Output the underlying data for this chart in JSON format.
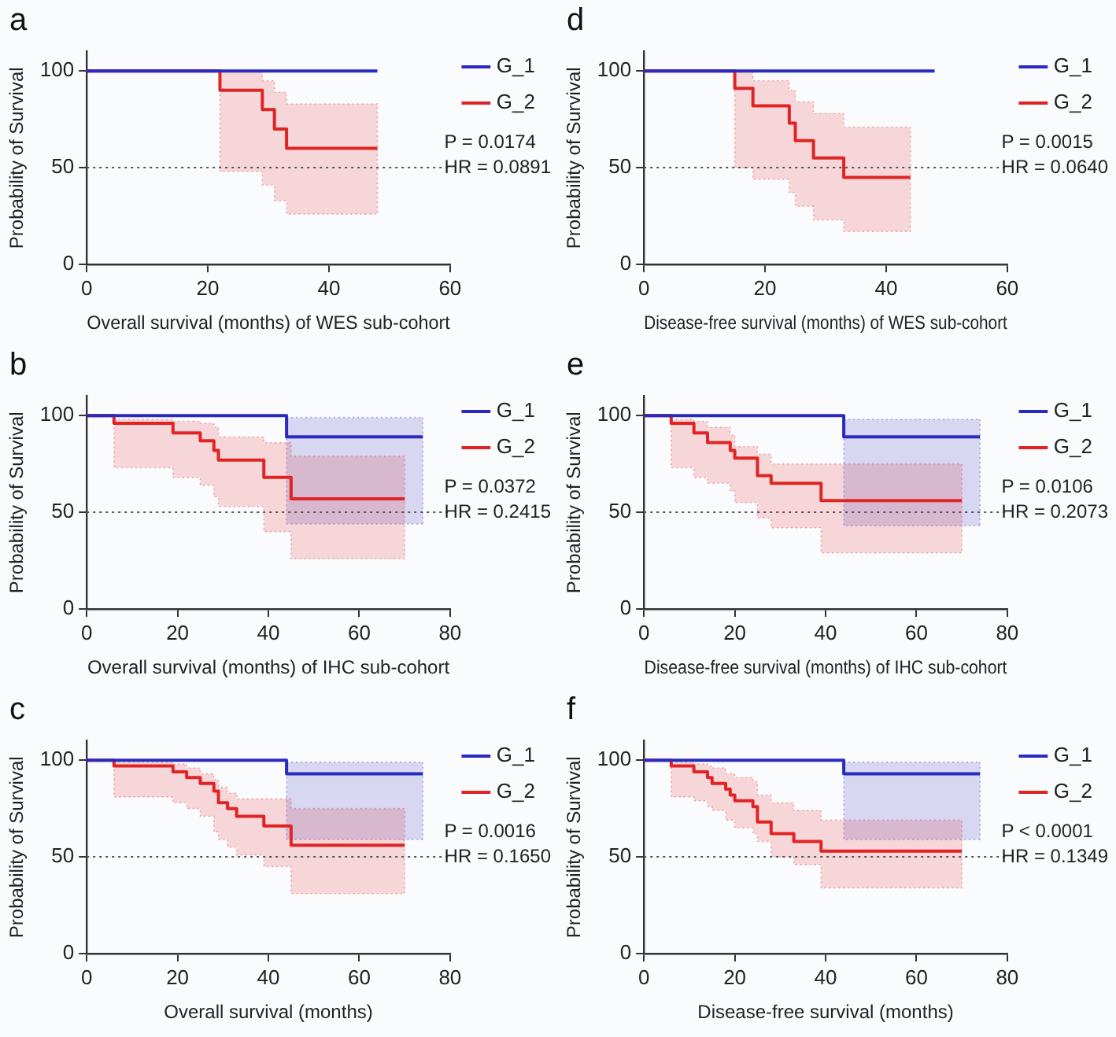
{
  "chart_data": [
    {
      "type": "step",
      "title": "a",
      "xlabel": "Overall survival (months) of WES sub-cohort",
      "ylabel": "Probability of Survival",
      "xlim": [
        0,
        60
      ],
      "xticks": [
        0,
        20,
        40,
        60
      ],
      "ylim": [
        0,
        110
      ],
      "yticks": [
        0,
        50,
        100
      ],
      "grid": false,
      "legend": "right",
      "annotations": [
        "P = 0.0174",
        "HR = 0.0891"
      ],
      "ref_lines": [
        {
          "axis": "y",
          "value": 50,
          "color": "#555555",
          "line_style": "dotted"
        }
      ],
      "series": [
        {
          "name": "G_1",
          "color": "#2a2ac0",
          "x": [
            0,
            48
          ],
          "values": [
            100,
            100
          ]
        },
        {
          "name": "G_2",
          "color": "#e02424",
          "x": [
            0,
            22,
            29,
            31,
            33,
            48
          ],
          "values": [
            100,
            90,
            80,
            70,
            60,
            60
          ],
          "lower": [
            null,
            48,
            41,
            33,
            26,
            26
          ],
          "upper": [
            null,
            100,
            95,
            89,
            83,
            83
          ]
        }
      ]
    },
    {
      "type": "step",
      "title": "d",
      "xlabel": "Disease-free survival (months) of WES sub-cohort",
      "ylabel": "Probability of Survival",
      "xlim": [
        0,
        60
      ],
      "xticks": [
        0,
        20,
        40,
        60
      ],
      "ylim": [
        0,
        110
      ],
      "yticks": [
        0,
        50,
        100
      ],
      "grid": false,
      "legend": "right",
      "annotations": [
        "P = 0.0015",
        "HR = 0.0640"
      ],
      "ref_lines": [
        {
          "axis": "y",
          "value": 50,
          "color": "#555555",
          "line_style": "dotted"
        }
      ],
      "series": [
        {
          "name": "G_1",
          "color": "#2a2ac0",
          "x": [
            0,
            48
          ],
          "values": [
            100,
            100
          ]
        },
        {
          "name": "G_2",
          "color": "#e02424",
          "x": [
            0,
            15,
            18,
            24,
            25,
            28,
            33,
            44
          ],
          "values": [
            100,
            91,
            82,
            73,
            64,
            55,
            45,
            45
          ],
          "lower": [
            null,
            50,
            44,
            37,
            30,
            23,
            17,
            17
          ],
          "upper": [
            null,
            100,
            95,
            90,
            84,
            78,
            71,
            71
          ]
        }
      ]
    },
    {
      "type": "step",
      "title": "b",
      "xlabel": "Overall survival (months) of IHC sub-cohort",
      "ylabel": "Probability of Survival",
      "xlim": [
        0,
        80
      ],
      "xticks": [
        0,
        20,
        40,
        60,
        80
      ],
      "ylim": [
        0,
        110
      ],
      "yticks": [
        0,
        50,
        100
      ],
      "grid": false,
      "legend": "right",
      "annotations": [
        "P = 0.0372",
        "HR = 0.2415"
      ],
      "ref_lines": [
        {
          "axis": "y",
          "value": 50,
          "color": "#555555",
          "line_style": "dotted"
        }
      ],
      "series": [
        {
          "name": "G_1",
          "color": "#2a2ac0",
          "x": [
            0,
            44,
            74
          ],
          "values": [
            100,
            89,
            89
          ],
          "lower": [
            null,
            44,
            44
          ],
          "upper": [
            null,
            99,
            99
          ]
        },
        {
          "name": "G_2",
          "color": "#e02424",
          "x": [
            0,
            6,
            19,
            25,
            28,
            29,
            39,
            45,
            70
          ],
          "values": [
            100,
            96,
            91,
            87,
            82,
            77,
            68,
            57,
            57
          ],
          "lower": [
            null,
            73,
            68,
            64,
            58,
            53,
            40,
            26,
            26
          ],
          "upper": [
            null,
            98,
            97,
            96,
            94,
            89,
            86,
            79,
            79
          ]
        }
      ]
    },
    {
      "type": "step",
      "title": "e",
      "xlabel": "Disease-free survival (months) of IHC sub-cohort",
      "ylabel": "Probability of Survival",
      "xlim": [
        0,
        80
      ],
      "xticks": [
        0,
        20,
        40,
        60,
        80
      ],
      "ylim": [
        0,
        110
      ],
      "yticks": [
        0,
        50,
        100
      ],
      "grid": false,
      "legend": "right",
      "annotations": [
        "P = 0.0106",
        "HR = 0.2073"
      ],
      "ref_lines": [
        {
          "axis": "y",
          "value": 50,
          "color": "#555555",
          "line_style": "dotted"
        }
      ],
      "series": [
        {
          "name": "G_1",
          "color": "#2a2ac0",
          "x": [
            0,
            44,
            74
          ],
          "values": [
            100,
            89,
            89
          ],
          "lower": [
            null,
            43,
            43
          ],
          "upper": [
            null,
            98,
            98
          ]
        },
        {
          "name": "G_2",
          "color": "#e02424",
          "x": [
            0,
            6,
            11,
            14,
            19,
            20,
            25,
            28,
            39,
            70
          ],
          "values": [
            100,
            96,
            91,
            86,
            82,
            78,
            69,
            65,
            56,
            56
          ],
          "lower": [
            null,
            73,
            68,
            65,
            61,
            55,
            47,
            42,
            29,
            29
          ],
          "upper": [
            null,
            98,
            97,
            94,
            90,
            84,
            80,
            75,
            75,
            75
          ]
        }
      ]
    },
    {
      "type": "step",
      "title": "c",
      "xlabel": "Overall survival (months)",
      "ylabel": "Probability of Survival",
      "xlim": [
        0,
        80
      ],
      "xticks": [
        0,
        20,
        40,
        60,
        80
      ],
      "ylim": [
        0,
        110
      ],
      "yticks": [
        0,
        50,
        100
      ],
      "grid": false,
      "legend": "right",
      "annotations": [
        "P = 0.0016",
        "HR = 0.1650"
      ],
      "ref_lines": [
        {
          "axis": "y",
          "value": 50,
          "color": "#555555",
          "line_style": "dotted"
        }
      ],
      "series": [
        {
          "name": "G_1",
          "color": "#2a2ac0",
          "x": [
            0,
            44,
            74
          ],
          "values": [
            100,
            93,
            93
          ],
          "lower": [
            null,
            59,
            59
          ],
          "upper": [
            null,
            99,
            99
          ]
        },
        {
          "name": "G_2",
          "color": "#e02424",
          "x": [
            0,
            6,
            19,
            22,
            25,
            28,
            29,
            31,
            33,
            39,
            45,
            70
          ],
          "values": [
            100,
            97,
            94,
            91,
            88,
            84,
            78,
            75,
            71,
            66,
            56,
            56
          ],
          "lower": [
            null,
            81,
            78,
            75,
            71,
            63,
            59,
            55,
            51,
            45,
            31,
            31
          ],
          "upper": [
            null,
            99,
            98,
            96,
            93,
            90,
            86,
            83,
            80,
            80,
            75,
            75
          ]
        }
      ]
    },
    {
      "type": "step",
      "title": "f",
      "xlabel": "Disease-free survival (months)",
      "ylabel": "Probability of Survival",
      "xlim": [
        0,
        80
      ],
      "xticks": [
        0,
        20,
        40,
        60,
        80
      ],
      "ylim": [
        0,
        110
      ],
      "yticks": [
        0,
        50,
        100
      ],
      "grid": false,
      "legend": "right",
      "annotations": [
        "P < 0.0001",
        "HR = 0.1349"
      ],
      "ref_lines": [
        {
          "axis": "y",
          "value": 50,
          "color": "#555555",
          "line_style": "dotted"
        }
      ],
      "series": [
        {
          "name": "G_1",
          "color": "#2a2ac0",
          "x": [
            0,
            44,
            74
          ],
          "values": [
            100,
            93,
            93
          ],
          "lower": [
            null,
            59,
            59
          ],
          "upper": [
            null,
            99,
            99
          ]
        },
        {
          "name": "G_2",
          "color": "#e02424",
          "x": [
            0,
            6,
            11,
            14,
            15,
            18,
            19,
            20,
            24,
            25,
            28,
            33,
            39,
            70
          ],
          "values": [
            100,
            97,
            94,
            91,
            88,
            85,
            82,
            79,
            76,
            68,
            62,
            58,
            53,
            53
          ],
          "lower": [
            null,
            81,
            79,
            76,
            74,
            69,
            69,
            65,
            62,
            58,
            50,
            46,
            34,
            34
          ],
          "upper": [
            null,
            99,
            98,
            97,
            96,
            93,
            93,
            91,
            89,
            82,
            78,
            74,
            69,
            69
          ]
        }
      ]
    }
  ]
}
